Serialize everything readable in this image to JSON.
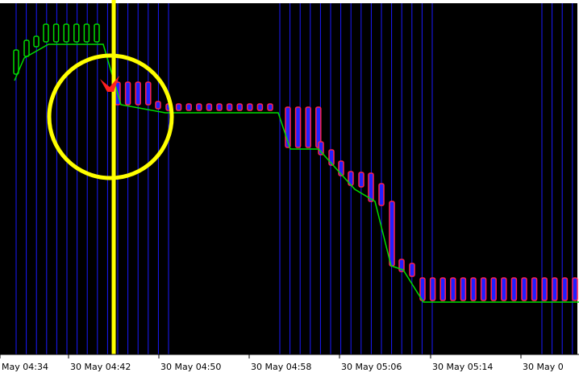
{
  "chart_data": {
    "type": "candlestick",
    "categories": [
      "May 04:34",
      "30 May 04:42",
      "30 May 04:50",
      "30 May 04:58",
      "30 May 05:06",
      "30 May 05:14",
      "30 May 0"
    ]
  }
}
